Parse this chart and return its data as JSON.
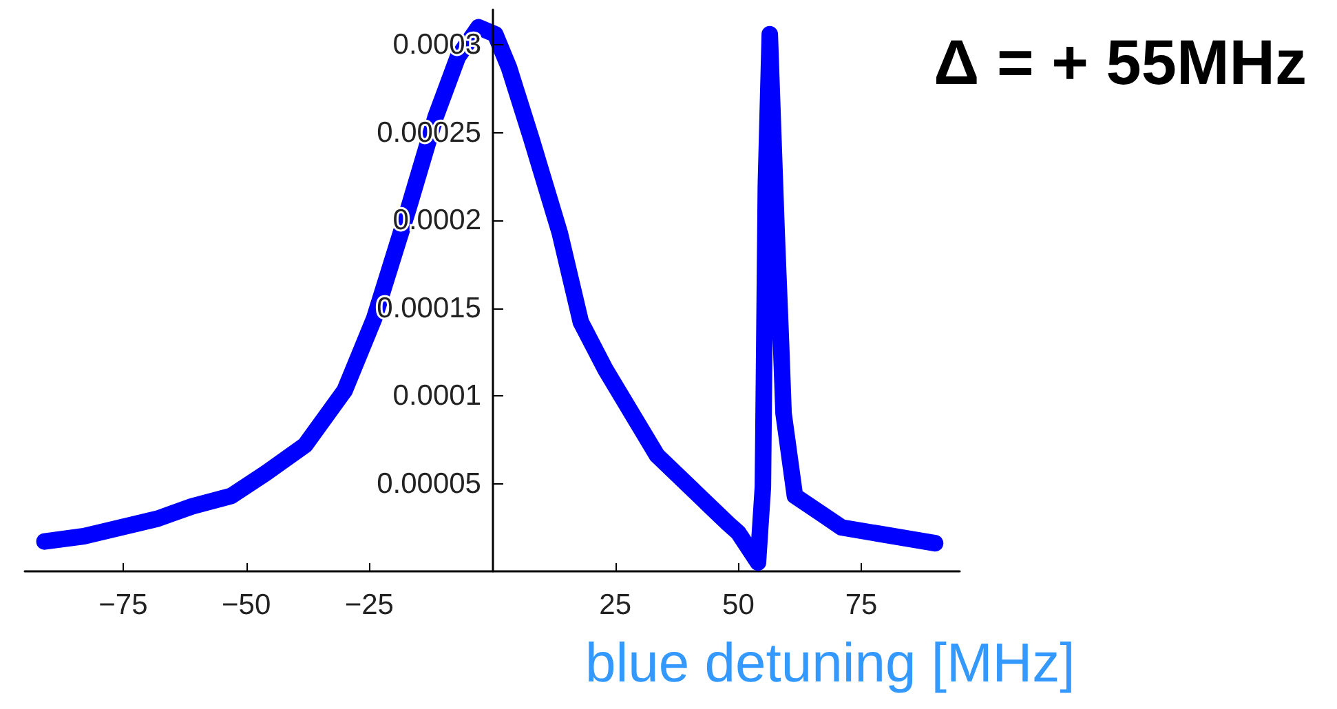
{
  "chart_data": {
    "type": "line",
    "xlabel": "blue detuning [MHz]",
    "annotations": [
      "Δ = + 55MHz"
    ],
    "x": [
      -91,
      -83,
      -68,
      -61,
      -53,
      -46,
      -38,
      -30,
      -24,
      -17,
      -11.5,
      -7,
      -2.8,
      0.6,
      3.4,
      8,
      13.7,
      18,
      23,
      33.5,
      48,
      50,
      54,
      55,
      55.6,
      56.4,
      57.8,
      58.7,
      59.2,
      61.5,
      66.8,
      71,
      90
    ],
    "series": [
      {
        "color": "#0000ff",
        "values": [
          1.7e-05,
          2e-05,
          3e-05,
          3.7e-05,
          4.3e-05,
          5.6e-05,
          7.2e-05,
          0.000103,
          0.000144,
          0.000207,
          0.000259,
          0.000293,
          0.00031,
          0.000306,
          0.000287,
          0.000246,
          0.000193,
          0.000142,
          0.000115,
          6.6e-05,
          2.7e-05,
          2.2e-05,
          5e-06,
          4.8e-05,
          0.00022,
          0.000306,
          0.000193,
          0.000129,
          9e-05,
          4.3e-05,
          3.3e-05,
          2.5e-05,
          1.6e-05
        ]
      }
    ],
    "xlim": [
      -95,
      95
    ],
    "ylim": [
      0,
      0.00032
    ],
    "xticks": [
      {
        "value": -75,
        "label": "−75"
      },
      {
        "value": -50,
        "label": "−50"
      },
      {
        "value": -25,
        "label": "−25"
      },
      25,
      50,
      75
    ],
    "yticks": [
      {
        "value": 5e-05,
        "label": "0.00005"
      },
      0.0001,
      0.00015,
      0.0002,
      0.00025,
      0.0003
    ],
    "grid": false,
    "line_style": "solid"
  }
}
